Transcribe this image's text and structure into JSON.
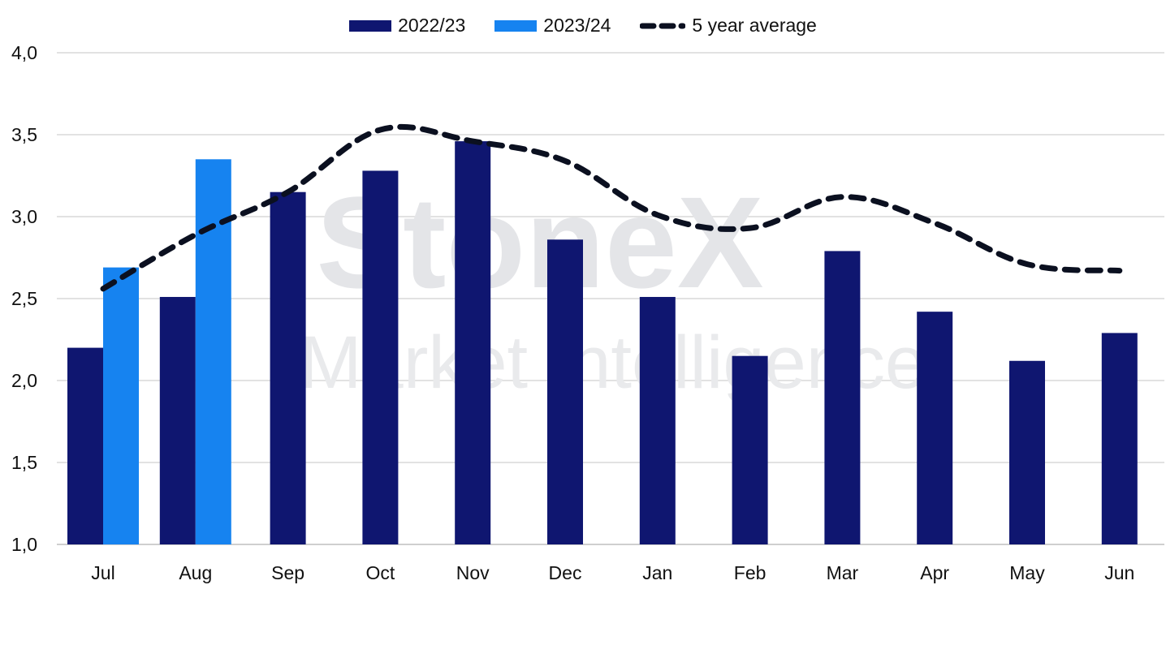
{
  "watermark": {
    "brand": "StoneX",
    "sub": "Market Intelligence"
  },
  "colors": {
    "series_2022": "#0f1670",
    "series_2023": "#1683f0",
    "average": "#0b1020",
    "grid": "#d9d9d9",
    "watermark": "#e4e5e8"
  },
  "chart_data": {
    "type": "bar",
    "categories": [
      "Jul",
      "Aug",
      "Sep",
      "Oct",
      "Nov",
      "Dec",
      "Jan",
      "Feb",
      "Mar",
      "Apr",
      "May",
      "Jun"
    ],
    "series": [
      {
        "name": "2022/23",
        "type": "bar",
        "values": [
          2.2,
          2.51,
          3.15,
          3.28,
          3.46,
          2.86,
          2.51,
          2.15,
          2.79,
          2.42,
          2.12,
          2.29
        ]
      },
      {
        "name": "2023/24",
        "type": "bar",
        "values": [
          2.69,
          3.35,
          null,
          null,
          null,
          null,
          null,
          null,
          null,
          null,
          null,
          null
        ]
      },
      {
        "name": "5 year average",
        "type": "line",
        "style": "dashed",
        "values": [
          2.56,
          2.89,
          3.15,
          3.53,
          3.46,
          3.34,
          3.01,
          2.93,
          3.12,
          2.96,
          2.71,
          2.67
        ]
      }
    ],
    "ylim": [
      1.0,
      4.0
    ],
    "yticks": [
      "1,0",
      "1,5",
      "2,0",
      "2,5",
      "3,0",
      "3,5",
      "4,0"
    ],
    "ytick_values": [
      1.0,
      1.5,
      2.0,
      2.5,
      3.0,
      3.5,
      4.0
    ],
    "grid": true,
    "legend_position": "top-center",
    "title": "",
    "xlabel": "",
    "ylabel": ""
  }
}
